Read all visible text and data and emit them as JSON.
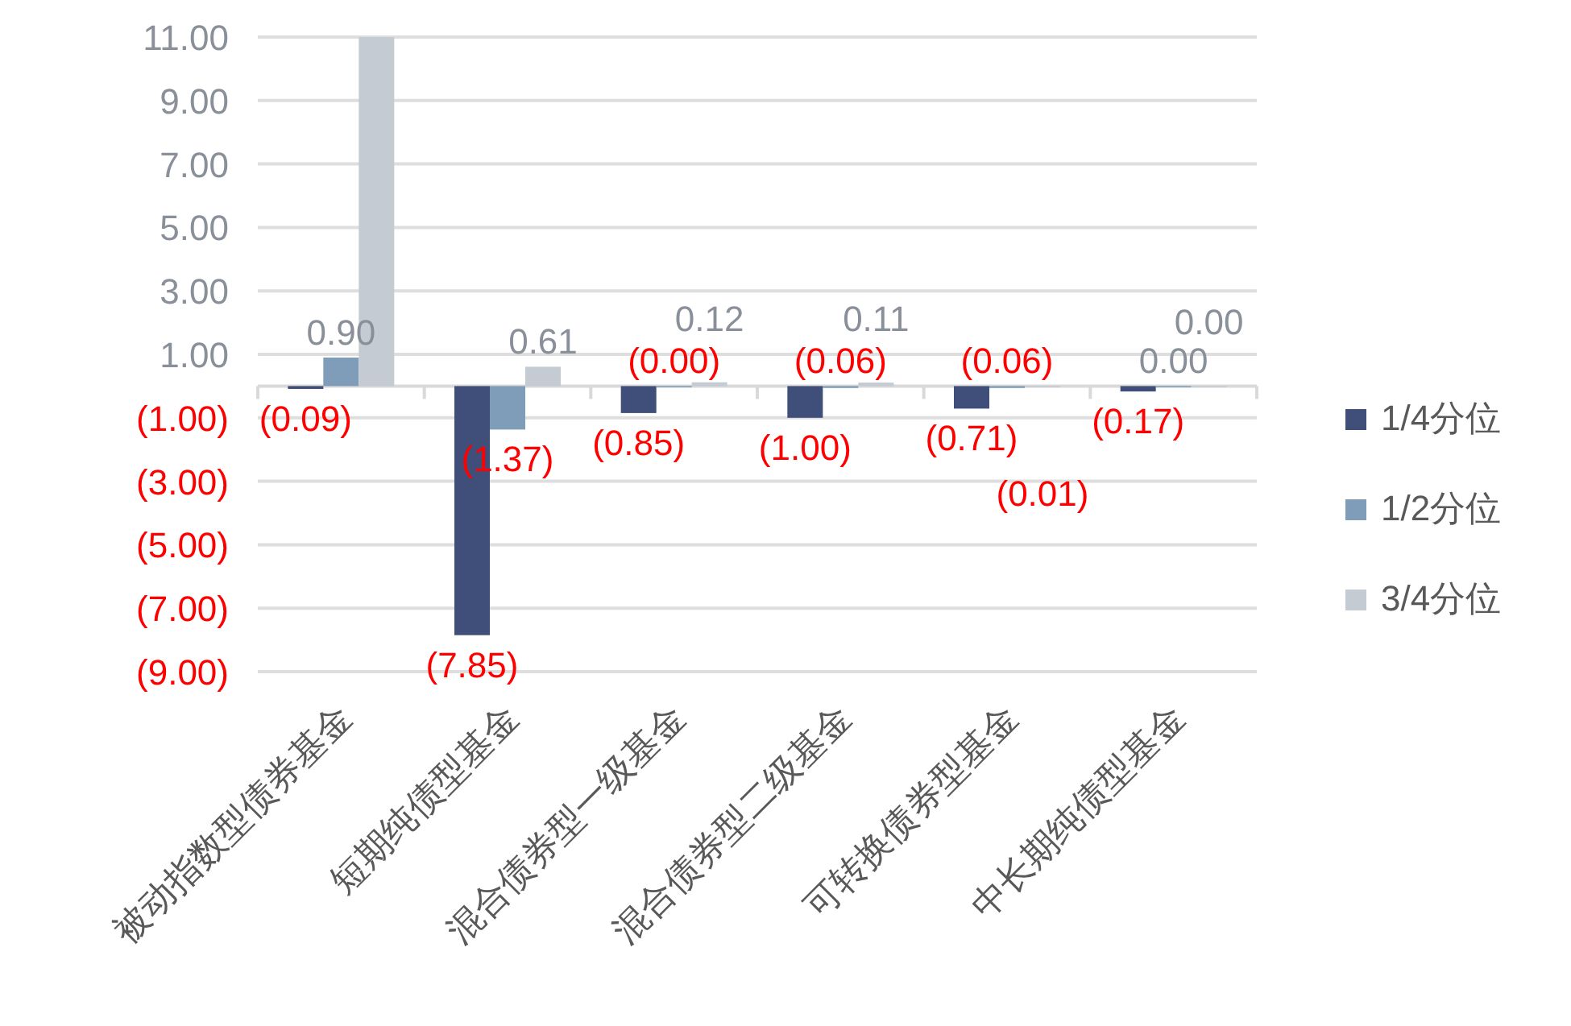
{
  "chart_data": {
    "type": "bar",
    "categories": [
      "被动指数型债券基金",
      "短期纯债型基金",
      "混合债券型一级基金",
      "混合债券型二级基金",
      "可转换债券型基金",
      "中长期纯债型基金"
    ],
    "series": [
      {
        "name": "1/4分位",
        "color": "#3f4f7a",
        "values": [
          -0.09,
          -7.85,
          -0.85,
          -1.0,
          -0.71,
          -0.17
        ],
        "value_labels": [
          "(0.09)",
          "(7.85)",
          "(0.85)",
          "(1.00)",
          "(0.71)",
          "(0.17)"
        ]
      },
      {
        "name": "1/2分位",
        "color": "#7f9cb8",
        "values": [
          0.9,
          -1.37,
          -0.0,
          -0.06,
          -0.06,
          0.0
        ],
        "value_labels": [
          "0.90",
          "(1.37)",
          "(0.00)",
          "(0.06)",
          "(0.06)",
          "0.00"
        ]
      },
      {
        "name": "3/4分位",
        "color": "#c4cbd3",
        "values": [
          11.0,
          0.61,
          0.12,
          0.11,
          -0.01,
          0.0
        ],
        "value_labels": [
          null,
          "0.61",
          "0.12",
          "0.11",
          "(0.01)",
          "0.00"
        ]
      }
    ],
    "ylim": [
      -9,
      11
    ],
    "yticks": [
      {
        "value": -9,
        "label": "(9.00)"
      },
      {
        "value": -7,
        "label": "(7.00)"
      },
      {
        "value": -5,
        "label": "(5.00)"
      },
      {
        "value": -3,
        "label": "(3.00)"
      },
      {
        "value": -1,
        "label": "(1.00)"
      },
      {
        "value": 1,
        "label": "1.00"
      },
      {
        "value": 3,
        "label": "3.00"
      },
      {
        "value": 5,
        "label": "5.00"
      },
      {
        "value": 7,
        "label": "7.00"
      },
      {
        "value": 9,
        "label": "9.00"
      },
      {
        "value": 11,
        "label": "11.00"
      }
    ],
    "grid": "y",
    "legend": "right"
  }
}
